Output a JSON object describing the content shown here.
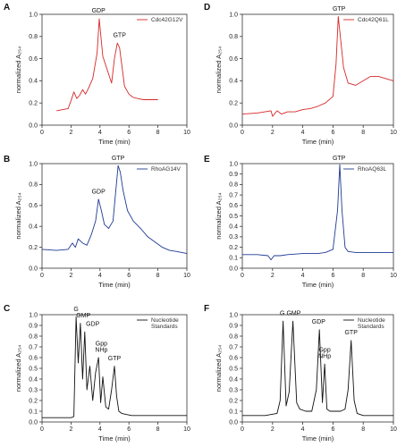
{
  "chart_data": [
    {
      "panel": "A",
      "type": "line",
      "xlabel": "Time (min)",
      "ylabel": "normalized A₂₅₄",
      "xlim": [
        0,
        10
      ],
      "ylim": [
        0,
        1.0
      ],
      "xticks": [
        "0",
        "2",
        "4",
        "6",
        "8",
        "10"
      ],
      "yticks": [
        "0.0",
        "0.2",
        "0.4",
        "0.6",
        "0.8",
        "1.0"
      ],
      "series": [
        {
          "name": "Cdc42G12V",
          "color": "#d62728",
          "x": [
            1.0,
            1.8,
            2.0,
            2.2,
            2.4,
            2.6,
            2.8,
            3.0,
            3.2,
            3.5,
            3.8,
            3.95,
            4.05,
            4.2,
            4.5,
            4.8,
            5.0,
            5.2,
            5.35,
            5.5,
            5.7,
            6.0,
            6.3,
            6.6,
            7.0,
            8.0
          ],
          "y": [
            0.13,
            0.15,
            0.22,
            0.3,
            0.24,
            0.27,
            0.32,
            0.28,
            0.33,
            0.42,
            0.65,
            0.96,
            0.82,
            0.62,
            0.5,
            0.38,
            0.6,
            0.74,
            0.7,
            0.55,
            0.35,
            0.28,
            0.25,
            0.24,
            0.23,
            0.23
          ]
        }
      ],
      "annotations": [
        "GDP",
        "GTP"
      ]
    },
    {
      "panel": "B",
      "type": "line",
      "xlabel": "Time (min)",
      "ylabel": "normalized A₂₅₄",
      "xlim": [
        0,
        10
      ],
      "ylim": [
        0,
        1.0
      ],
      "xticks": [
        "0",
        "2",
        "4",
        "6",
        "8",
        "10"
      ],
      "yticks": [
        "0.0",
        "0.2",
        "0.4",
        "0.6",
        "0.8",
        "1.0"
      ],
      "series": [
        {
          "name": "RhoAG14V",
          "color": "#1f3a93",
          "x": [
            0.0,
            1.0,
            1.8,
            2.1,
            2.3,
            2.5,
            2.8,
            3.1,
            3.4,
            3.7,
            3.9,
            4.1,
            4.3,
            4.6,
            4.9,
            5.1,
            5.25,
            5.4,
            5.6,
            5.9,
            6.3,
            6.8,
            7.3,
            7.8,
            8.3,
            8.8,
            9.3,
            10.0
          ],
          "y": [
            0.18,
            0.17,
            0.18,
            0.24,
            0.2,
            0.28,
            0.24,
            0.22,
            0.32,
            0.45,
            0.66,
            0.55,
            0.42,
            0.38,
            0.45,
            0.75,
            0.98,
            0.92,
            0.74,
            0.55,
            0.45,
            0.38,
            0.3,
            0.25,
            0.2,
            0.17,
            0.16,
            0.14
          ]
        }
      ],
      "annotations": [
        "GTP",
        "GDP"
      ]
    },
    {
      "panel": "C",
      "type": "line",
      "xlabel": "Time (min)",
      "ylabel": "normalized A₂₅₄",
      "xlim": [
        0,
        10
      ],
      "ylim": [
        0,
        1.0
      ],
      "xticks": [
        "0",
        "2",
        "4",
        "6",
        "8",
        "10"
      ],
      "yticks": [
        "0.0",
        "0.1",
        "0.2",
        "0.3",
        "0.4",
        "0.5",
        "0.6",
        "0.7",
        "0.8",
        "0.9",
        "1.0"
      ],
      "series": [
        {
          "name": "Nucleotide Standards",
          "color": "#111111",
          "x": [
            0.0,
            2.0,
            2.2,
            2.35,
            2.5,
            2.65,
            2.8,
            2.95,
            3.1,
            3.3,
            3.5,
            3.7,
            3.9,
            4.05,
            4.2,
            4.4,
            4.6,
            4.8,
            5.0,
            5.15,
            5.3,
            5.5,
            5.8,
            6.2,
            6.6,
            7.0,
            10.0
          ],
          "y": [
            0.04,
            0.04,
            0.05,
            0.98,
            0.55,
            0.92,
            0.4,
            0.84,
            0.3,
            0.52,
            0.2,
            0.46,
            0.6,
            0.18,
            0.42,
            0.14,
            0.12,
            0.3,
            0.52,
            0.24,
            0.1,
            0.08,
            0.07,
            0.06,
            0.06,
            0.06,
            0.06
          ]
        }
      ],
      "annotations": [
        "G",
        "GMP",
        "GDP",
        "Gpp NHp",
        "GTP"
      ]
    },
    {
      "panel": "D",
      "type": "line",
      "xlabel": "Time (min)",
      "ylabel": "normalized A₂₅₄",
      "xlim": [
        0,
        10
      ],
      "ylim": [
        0,
        1.0
      ],
      "xticks": [
        "0",
        "2",
        "4",
        "6",
        "8",
        "10"
      ],
      "yticks": [
        "0.0",
        "0.2",
        "0.4",
        "0.6",
        "0.8",
        "1.0"
      ],
      "series": [
        {
          "name": "Cdc42Q61L",
          "color": "#d62728",
          "x": [
            0.0,
            1.0,
            1.9,
            2.0,
            2.3,
            2.6,
            3.0,
            3.5,
            4.0,
            4.5,
            5.0,
            5.5,
            6.0,
            6.2,
            6.35,
            6.5,
            6.7,
            7.0,
            7.5,
            8.0,
            8.5,
            9.0,
            9.5,
            10.0
          ],
          "y": [
            0.1,
            0.11,
            0.13,
            0.08,
            0.13,
            0.1,
            0.12,
            0.12,
            0.14,
            0.15,
            0.17,
            0.2,
            0.26,
            0.55,
            0.98,
            0.78,
            0.52,
            0.38,
            0.36,
            0.4,
            0.44,
            0.44,
            0.42,
            0.4
          ]
        }
      ],
      "annotations": [
        "GTP"
      ]
    },
    {
      "panel": "E",
      "type": "line",
      "xlabel": "Time (min)",
      "ylabel": "normalized A₂₅₄",
      "xlim": [
        0,
        10
      ],
      "ylim": [
        0,
        1.0
      ],
      "xticks": [
        "0",
        "2",
        "4",
        "6",
        "8",
        "10"
      ],
      "yticks": [
        "0.0",
        "0.1",
        "0.2",
        "0.3",
        "0.4",
        "0.5",
        "0.6",
        "0.7",
        "0.8",
        "0.9",
        "1.0"
      ],
      "series": [
        {
          "name": "RhoAQ63L",
          "color": "#1f3a93",
          "x": [
            0.0,
            1.0,
            1.7,
            1.9,
            2.1,
            2.5,
            3.0,
            4.0,
            5.0,
            5.5,
            6.0,
            6.3,
            6.45,
            6.6,
            6.8,
            7.0,
            7.5,
            8.0,
            9.0,
            10.0
          ],
          "y": [
            0.13,
            0.13,
            0.12,
            0.08,
            0.12,
            0.12,
            0.13,
            0.14,
            0.14,
            0.15,
            0.18,
            0.55,
            0.99,
            0.55,
            0.2,
            0.16,
            0.15,
            0.15,
            0.15,
            0.15
          ]
        }
      ],
      "annotations": [
        "GTP"
      ]
    },
    {
      "panel": "F",
      "type": "line",
      "xlabel": "Time (min)",
      "ylabel": "normalized A₂₅₄",
      "xlim": [
        0,
        10
      ],
      "ylim": [
        0,
        1.0
      ],
      "xticks": [
        "0",
        "2",
        "4",
        "6",
        "8",
        "10"
      ],
      "yticks": [
        "0.0",
        "0.1",
        "0.2",
        "0.3",
        "0.4",
        "0.5",
        "0.6",
        "0.7",
        "0.8",
        "0.9",
        "1.0"
      ],
      "series": [
        {
          "name": "Nucleotide Standards",
          "color": "#111111",
          "x": [
            0.0,
            1.5,
            2.3,
            2.5,
            2.7,
            2.9,
            3.1,
            3.35,
            3.6,
            3.8,
            4.2,
            4.6,
            4.9,
            5.1,
            5.3,
            5.45,
            5.6,
            5.8,
            6.2,
            6.5,
            6.8,
            7.0,
            7.2,
            7.4,
            7.6,
            8.0,
            10.0
          ],
          "y": [
            0.06,
            0.06,
            0.08,
            0.2,
            0.94,
            0.15,
            0.28,
            0.94,
            0.18,
            0.12,
            0.1,
            0.1,
            0.3,
            0.86,
            0.18,
            0.54,
            0.12,
            0.1,
            0.1,
            0.1,
            0.12,
            0.3,
            0.76,
            0.2,
            0.08,
            0.06,
            0.06
          ]
        }
      ],
      "annotations": [
        "G",
        "GMP",
        "GDP",
        "Gpp NHp",
        "GTP"
      ]
    }
  ]
}
